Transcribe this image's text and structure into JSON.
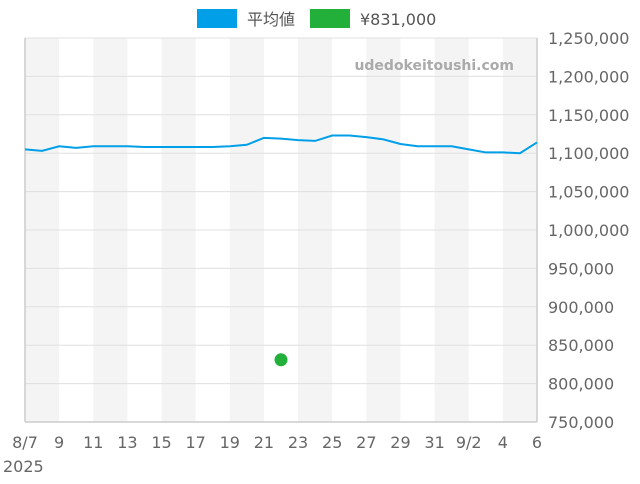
{
  "chart_data": {
    "type": "line",
    "legend": {
      "position": "top",
      "entries": [
        {
          "label": "平均値",
          "color": "#009fe8"
        },
        {
          "label": "¥831,000",
          "color": "#22b03a"
        }
      ]
    },
    "watermark": "udedokeitoushi.com",
    "x_ticks": [
      "8/7",
      "9",
      "11",
      "13",
      "15",
      "17",
      "19",
      "21",
      "23",
      "25",
      "27",
      "29",
      "31",
      "9/2",
      "4",
      "6"
    ],
    "x_year_label": "2025",
    "x_range": [
      "2025-08-07",
      "2025-09-06"
    ],
    "y_ticks": [
      "750,000",
      "800,000",
      "850,000",
      "900,000",
      "950,000",
      "1,000,000",
      "1,050,000",
      "1,100,000",
      "1,150,000",
      "1,200,000",
      "1,250,000"
    ],
    "ylim": [
      750000,
      1250000
    ],
    "grid": true,
    "series": [
      {
        "name": "平均値",
        "color": "#009fe8",
        "x": [
          "2025-08-07",
          "2025-08-08",
          "2025-08-09",
          "2025-08-10",
          "2025-08-11",
          "2025-08-12",
          "2025-08-13",
          "2025-08-14",
          "2025-08-15",
          "2025-08-16",
          "2025-08-17",
          "2025-08-18",
          "2025-08-19",
          "2025-08-20",
          "2025-08-21",
          "2025-08-22",
          "2025-08-23",
          "2025-08-24",
          "2025-08-25",
          "2025-08-26",
          "2025-08-27",
          "2025-08-28",
          "2025-08-29",
          "2025-08-30",
          "2025-08-31",
          "2025-09-01",
          "2025-09-02",
          "2025-09-03",
          "2025-09-04",
          "2025-09-05",
          "2025-09-06"
        ],
        "values": [
          1105000,
          1103000,
          1109000,
          1107000,
          1109000,
          1109000,
          1109000,
          1108000,
          1108000,
          1108000,
          1108000,
          1108000,
          1109000,
          1111000,
          1120000,
          1119000,
          1117000,
          1116000,
          1123000,
          1123000,
          1121000,
          1118000,
          1112000,
          1109000,
          1109000,
          1109000,
          1105000,
          1101000,
          1101000,
          1100000,
          1114000
        ]
      },
      {
        "name": "¥831,000",
        "type": "scatter",
        "color": "#22b03a",
        "x": [
          "2025-08-22"
        ],
        "values": [
          831000
        ]
      }
    ]
  }
}
